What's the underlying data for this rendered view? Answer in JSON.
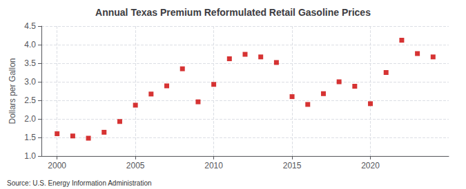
{
  "chart_data": {
    "type": "scatter",
    "title": "Annual Texas Premium Reformulated Retail Gasoline Prices",
    "ylabel": "Dollars per Gallon",
    "annotations": [
      "Source: U.S. Energy Information Administration"
    ],
    "x": [
      2000,
      2001,
      2002,
      2003,
      2004,
      2005,
      2006,
      2007,
      2008,
      2009,
      2010,
      2011,
      2012,
      2013,
      2014,
      2015,
      2016,
      2017,
      2018,
      2019,
      2020,
      2021,
      2022,
      2023,
      2024
    ],
    "values": [
      1.6,
      1.54,
      1.48,
      1.64,
      1.93,
      2.37,
      2.67,
      2.89,
      3.35,
      2.46,
      2.93,
      3.62,
      3.74,
      3.67,
      3.52,
      2.6,
      2.39,
      2.68,
      3.0,
      2.88,
      2.41,
      3.25,
      4.12,
      3.76,
      3.67
    ],
    "color": "#cc0000",
    "marker": "square",
    "xlim": [
      1999,
      2025
    ],
    "xticks": [
      2000,
      2005,
      2010,
      2015,
      2020
    ],
    "ylim": [
      1.0,
      4.5
    ],
    "yticks": [
      {
        "value": 1.0,
        "label": "1.0"
      },
      1.5,
      {
        "value": 2.0,
        "label": "2.0"
      },
      2.5,
      {
        "value": 3.0,
        "label": "3.0"
      },
      3.5,
      {
        "value": 4.0,
        "label": "4.0"
      },
      4.5
    ],
    "grid": true
  }
}
